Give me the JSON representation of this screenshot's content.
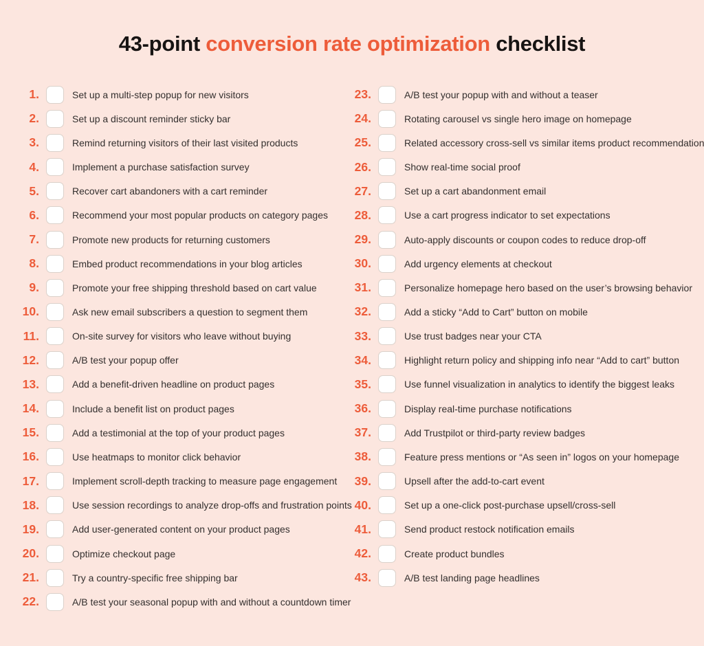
{
  "page": {
    "colors": {
      "bg": "#fce6df",
      "accent": "#ed5c3a",
      "title": "#171413",
      "label": "#332f2e",
      "checkbox-border": "#dbd1ca",
      "checkbox-fill": "#ffffff"
    }
  },
  "title": {
    "prefix": "43-point",
    "highlight": "conversion rate optimization",
    "suffix": "checklist"
  },
  "checklist": {
    "columns": [
      {
        "items": [
          {
            "number": "1.",
            "label": "Set up a multi-step popup for new visitors",
            "checked": false
          },
          {
            "number": "2.",
            "label": "Set up a discount reminder sticky bar",
            "checked": false
          },
          {
            "number": "3.",
            "label": "Remind returning visitors of their last visited products",
            "checked": false
          },
          {
            "number": "4.",
            "label": "Implement a purchase satisfaction survey",
            "checked": false
          },
          {
            "number": "5.",
            "label": "Recover cart abandoners with a cart reminder",
            "checked": false
          },
          {
            "number": "6.",
            "label": "Recommend your most popular products on category pages",
            "checked": false
          },
          {
            "number": "7.",
            "label": "Promote new products for returning customers",
            "checked": false
          },
          {
            "number": "8.",
            "label": "Embed product recommendations in your blog articles",
            "checked": false
          },
          {
            "number": "9.",
            "label": "Promote your free shipping threshold based on cart value",
            "checked": false
          },
          {
            "number": "10.",
            "label": "Ask new email subscribers a question to segment them",
            "checked": false
          },
          {
            "number": "11.",
            "label": "On-site survey for visitors who leave without buying",
            "checked": false
          },
          {
            "number": "12.",
            "label": "A/B test your popup offer",
            "checked": false
          },
          {
            "number": "13.",
            "label": "Add a benefit-driven headline on product pages",
            "checked": false
          },
          {
            "number": "14.",
            "label": "Include a benefit list on product pages",
            "checked": false
          },
          {
            "number": "15.",
            "label": "Add a testimonial at the top of your product pages",
            "checked": false
          },
          {
            "number": "16.",
            "label": "Use heatmaps to monitor click behavior",
            "checked": false
          },
          {
            "number": "17.",
            "label": "Implement scroll-depth tracking to measure page engagement",
            "checked": false
          },
          {
            "number": "18.",
            "label": "Use session recordings to analyze drop-offs and frustration points",
            "checked": false
          },
          {
            "number": "19.",
            "label": "Add user-generated content on your product pages",
            "checked": false
          },
          {
            "number": "20.",
            "label": "Optimize checkout page",
            "checked": false
          },
          {
            "number": "21.",
            "label": "Try a country-specific free shipping bar",
            "checked": false
          },
          {
            "number": "22.",
            "label": "A/B test your seasonal popup with and without a countdown timer",
            "checked": false
          }
        ]
      },
      {
        "items": [
          {
            "number": "23.",
            "label": "A/B test your popup with and without a teaser",
            "checked": false
          },
          {
            "number": "24.",
            "label": "Rotating carousel vs single hero image on homepage",
            "checked": false
          },
          {
            "number": "25.",
            "label": "Related accessory cross-sell vs similar items product recommendation",
            "checked": false
          },
          {
            "number": "26.",
            "label": "Show real-time social proof",
            "checked": false
          },
          {
            "number": "27.",
            "label": "Set up a cart abandonment email",
            "checked": false
          },
          {
            "number": "28.",
            "label": "Use a cart progress indicator to set expectations",
            "checked": false
          },
          {
            "number": "29.",
            "label": "Auto-apply discounts or coupon codes to reduce drop-off",
            "checked": false
          },
          {
            "number": "30.",
            "label": "Add urgency elements at checkout",
            "checked": false
          },
          {
            "number": "31.",
            "label": "Personalize homepage hero based on the user’s browsing behavior",
            "checked": false
          },
          {
            "number": "32.",
            "label": "Add a sticky “Add to Cart” button on mobile",
            "checked": false
          },
          {
            "number": "33.",
            "label": "Use trust badges near your CTA",
            "checked": false
          },
          {
            "number": "34.",
            "label": "Highlight return policy and shipping info near “Add to cart” button",
            "checked": false
          },
          {
            "number": "35.",
            "label": "Use funnel visualization in analytics to identify the biggest leaks",
            "checked": false
          },
          {
            "number": "36.",
            "label": "Display real-time purchase notifications",
            "checked": false
          },
          {
            "number": "37.",
            "label": "Add Trustpilot or third-party review badges",
            "checked": false
          },
          {
            "number": "38.",
            "label": "Feature press mentions or “As seen in” logos on your homepage",
            "checked": false
          },
          {
            "number": "39.",
            "label": "Upsell after the add-to-cart event",
            "checked": false
          },
          {
            "number": "40.",
            "label": "Set up a one-click post-purchase upsell/cross-sell",
            "checked": false
          },
          {
            "number": "41.",
            "label": "Send product restock notification emails",
            "checked": false
          },
          {
            "number": "42.",
            "label": "Create product bundles",
            "checked": false
          },
          {
            "number": "43.",
            "label": "A/B test landing page headlines",
            "checked": false
          }
        ]
      }
    ]
  }
}
